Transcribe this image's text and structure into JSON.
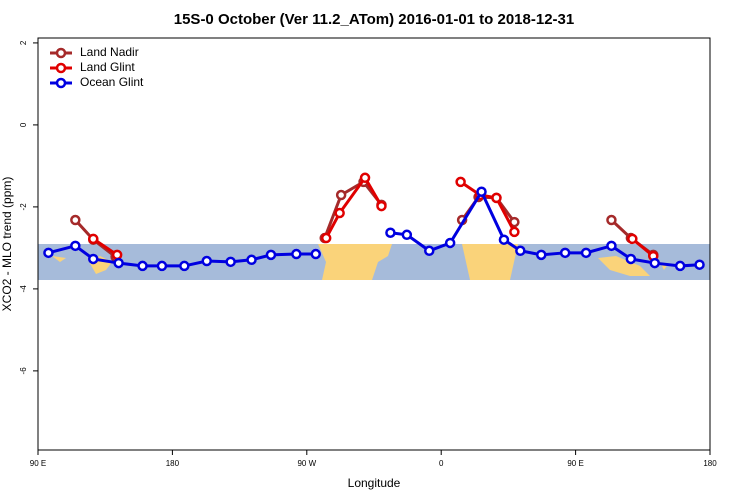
{
  "chart_data": {
    "type": "line",
    "title": "15S-0 October (Ver 11.2_ATom)   2016-01-01 to 2018-12-31",
    "xlabel": "Longitude",
    "ylabel": "XCO2 - MLO trend (ppm)",
    "xlim": [
      90,
      540
    ],
    "ylim": [
      -7.93,
      2.12
    ],
    "xticks": [
      {
        "value": 90,
        "label": "90 E"
      },
      180,
      {
        "value": 270,
        "label": "90 W"
      },
      {
        "value": 360,
        "label": "0"
      },
      {
        "value": 450,
        "label": "90 E"
      },
      {
        "value": 540,
        "label": "180"
      }
    ],
    "yticks": [
      2,
      0,
      -2,
      -4,
      -6
    ],
    "legend": "top-left",
    "series": [
      {
        "name": "Land Nadir",
        "color": "#a52a2a",
        "x": [
          115,
          127,
          142,
          null,
          282,
          293,
          308,
          320,
          null,
          374,
          385,
          397,
          409,
          null,
          474,
          487,
          502
        ],
        "values": [
          -2.32,
          -2.8,
          -3.22,
          null,
          -2.76,
          -1.71,
          -1.39,
          -1.95,
          null,
          -2.32,
          -1.76,
          -1.78,
          -2.37,
          null,
          -2.32,
          -2.76,
          -3.17
        ]
      },
      {
        "name": "Land Glint",
        "color": "#e00000",
        "x": [
          127,
          143,
          null,
          283,
          292,
          309,
          320,
          null,
          373,
          386,
          397,
          409,
          null,
          488,
          502
        ],
        "values": [
          -2.78,
          -3.17,
          null,
          -2.76,
          -2.15,
          -1.29,
          -1.98,
          null,
          -1.39,
          -1.71,
          -1.78,
          -2.61,
          null,
          -2.78,
          -3.2
        ]
      },
      {
        "name": "Ocean Glint",
        "color": "#0000e0",
        "x": [
          97,
          115,
          127,
          144,
          160,
          173,
          188,
          203,
          219,
          233,
          246,
          263,
          276,
          null,
          326,
          337,
          352,
          366,
          387,
          402,
          413,
          427,
          443,
          457,
          474,
          487,
          503,
          520,
          533
        ],
        "values": [
          -3.12,
          -2.95,
          -3.27,
          -3.37,
          -3.44,
          -3.44,
          -3.44,
          -3.32,
          -3.34,
          -3.29,
          -3.17,
          -3.15,
          -3.15,
          null,
          -2.63,
          -2.68,
          -3.07,
          -2.88,
          -1.63,
          -2.8,
          -3.07,
          -3.17,
          -3.12,
          -3.12,
          -2.95,
          -3.27,
          -3.37,
          -3.44,
          -3.41
        ]
      }
    ]
  }
}
